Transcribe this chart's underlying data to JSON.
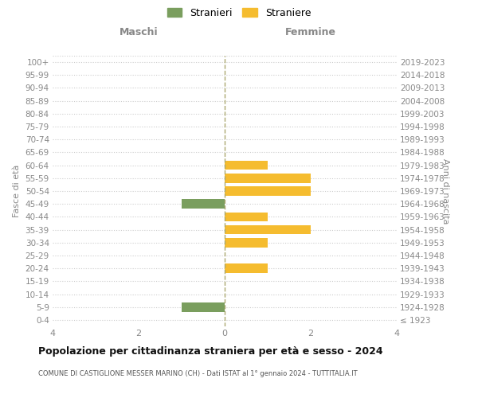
{
  "age_groups": [
    "100+",
    "95-99",
    "90-94",
    "85-89",
    "80-84",
    "75-79",
    "70-74",
    "65-69",
    "60-64",
    "55-59",
    "50-54",
    "45-49",
    "40-44",
    "35-39",
    "30-34",
    "25-29",
    "20-24",
    "15-19",
    "10-14",
    "5-9",
    "0-4"
  ],
  "birth_years": [
    "≤ 1923",
    "1924-1928",
    "1929-1933",
    "1934-1938",
    "1939-1943",
    "1944-1948",
    "1949-1953",
    "1954-1958",
    "1959-1963",
    "1964-1968",
    "1969-1973",
    "1974-1978",
    "1979-1983",
    "1984-1988",
    "1989-1993",
    "1994-1998",
    "1999-2003",
    "2004-2008",
    "2009-2013",
    "2014-2018",
    "2019-2023"
  ],
  "maschi": [
    0,
    0,
    0,
    0,
    0,
    0,
    0,
    0,
    0,
    0,
    0,
    -1,
    0,
    0,
    0,
    0,
    0,
    0,
    0,
    -1,
    0
  ],
  "femmine": [
    0,
    0,
    0,
    0,
    0,
    0,
    0,
    0,
    1,
    2,
    2,
    0,
    1,
    2,
    1,
    0,
    1,
    0,
    0,
    0,
    0
  ],
  "color_maschi": "#7a9e5e",
  "color_femmine": "#f5bc2f",
  "title": "Popolazione per cittadinanza straniera per età e sesso - 2024",
  "subtitle": "COMUNE DI CASTIGLIONE MESSER MARINO (CH) - Dati ISTAT al 1° gennaio 2024 - TUTTITALIA.IT",
  "xlabel_maschi": "Maschi",
  "xlabel_femmine": "Femmine",
  "ylabel_left": "Fasce di età",
  "ylabel_right": "Anni di nascita",
  "legend_maschi": "Stranieri",
  "legend_femmine": "Straniere",
  "xlim": 4,
  "background": "#ffffff",
  "grid_color": "#cccccc"
}
